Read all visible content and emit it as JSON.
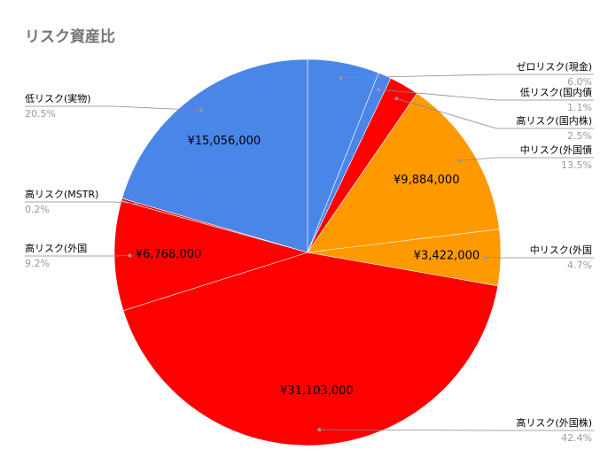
{
  "chart_data": {
    "type": "pie",
    "title": "リスク資産比",
    "categories": [
      "ゼロリスク(現金)",
      "低リスク(国内債",
      "高リスク(国内株)",
      "中リスク(外国債",
      "中リスク(外国",
      "高リスク(外国株)",
      "高リスク(外国",
      "高リスク(MSTR)",
      "低リスク(実物)"
    ],
    "values": [
      6.0,
      1.1,
      2.5,
      13.5,
      4.7,
      42.4,
      9.2,
      0.2,
      20.5
    ],
    "value_labels": [
      "6.0%",
      "1.1%",
      "2.5%",
      "13.5%",
      "4.7%",
      "42.4%",
      "9.2%",
      "0.2%",
      "20.5%"
    ],
    "amount_labels": [
      null,
      null,
      null,
      "¥9,884,000",
      "¥3,422,000",
      "¥31,103,000",
      "¥6,768,000",
      null,
      "¥15,056,000"
    ],
    "colors": [
      "#4a86e8",
      "#4a86e8",
      "#ff0000",
      "#ff9900",
      "#ff9900",
      "#ff0000",
      "#ff0000",
      "#ff0000",
      "#4a86e8"
    ]
  }
}
